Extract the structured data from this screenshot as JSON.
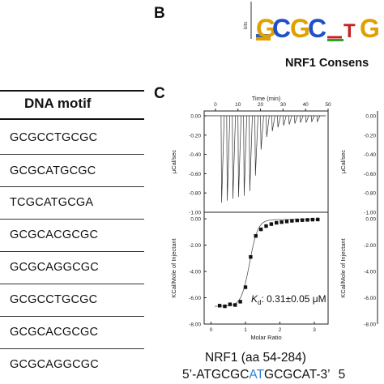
{
  "panel_b": {
    "letter": "B",
    "logo_axis_label": "bits",
    "logo_letters": [
      "G",
      "C",
      "G",
      "C",
      "T",
      "G"
    ],
    "caption": "NRF1 Consens"
  },
  "panel_c": {
    "letter": "C"
  },
  "table": {
    "header": "DNA motif",
    "rows": [
      "GCGCCTGCGC",
      "GCGCATGCGC",
      "TCGCATGCGA",
      "GCGCACGCGC",
      "GCGCAGGCGC",
      "GCGCCTGCGC",
      "GCGCACGCGC",
      "GCGCAGGCGC"
    ]
  },
  "chart_data": [
    {
      "type": "line",
      "title": "",
      "xlabel": "Time (min)",
      "ylabel": "μCal/sec",
      "x_ticks": [
        "0",
        "10",
        "20",
        "30",
        "40",
        "50"
      ],
      "y_ticks": [
        "0.00",
        "-0.20",
        "-0.40",
        "-0.60",
        "-0.80",
        "-1.00"
      ],
      "xlim": [
        -5,
        50
      ],
      "ylim": [
        -1.0,
        0.05
      ],
      "injections_time_min": [
        2.5,
        5,
        7.5,
        10,
        12.5,
        15,
        17.5,
        20,
        22.5,
        25,
        27.5,
        30,
        32.5,
        35,
        37.5,
        40,
        42.5,
        45
      ],
      "peak_minima": [
        -0.9,
        -0.88,
        -0.86,
        -0.84,
        -0.83,
        -0.78,
        -0.62,
        -0.35,
        -0.22,
        -0.16,
        -0.12,
        -0.1,
        -0.09,
        -0.08,
        -0.07,
        -0.07,
        -0.06,
        -0.06
      ]
    },
    {
      "type": "scatter",
      "title": "",
      "xlabel": "Molar Ratio",
      "ylabel": "KCal/Mole of Injectant",
      "x_ticks": [
        "0",
        "1",
        "2",
        "3"
      ],
      "y_ticks": [
        "0.00",
        "-2.00",
        "-4.00",
        "-6.00",
        "-8.00"
      ],
      "xlim": [
        -0.2,
        3.4
      ],
      "ylim": [
        -8.0,
        0.5
      ],
      "x": [
        0.25,
        0.4,
        0.55,
        0.7,
        0.85,
        1.0,
        1.15,
        1.3,
        1.45,
        1.6,
        1.75,
        1.9,
        2.05,
        2.2,
        2.35,
        2.5,
        2.65,
        2.8,
        2.95,
        3.1
      ],
      "y": [
        -6.6,
        -6.65,
        -6.5,
        -6.55,
        -6.3,
        -5.2,
        -2.9,
        -1.3,
        -0.8,
        -0.55,
        -0.4,
        -0.3,
        -0.25,
        -0.2,
        -0.15,
        -0.12,
        -0.1,
        -0.08,
        -0.06,
        -0.05
      ],
      "annotation_k": "K",
      "annotation_sub": "d",
      "annotation_value": ": 0.31±0.05 μM"
    },
    {
      "type": "line",
      "title": "",
      "xlabel": "",
      "ylabel": "μCal/sec",
      "y_ticks": [
        "0.00",
        "-0.20",
        "-0.40",
        "-0.60",
        "-0.80",
        "-1.00"
      ]
    },
    {
      "type": "scatter",
      "title": "",
      "xlabel": "",
      "ylabel": "KCal/Mole of Injectant",
      "y_ticks": [
        "0.00",
        "-2.00",
        "-4.00",
        "-6.00",
        "-8.00"
      ]
    }
  ],
  "captions": {
    "protein": "NRF1 (aa 54-284)",
    "seq_prefix": "5’-ATGCGC",
    "seq_highlight": "AT",
    "seq_suffix": "GCGCAT-3’",
    "next_fragment": "5"
  }
}
